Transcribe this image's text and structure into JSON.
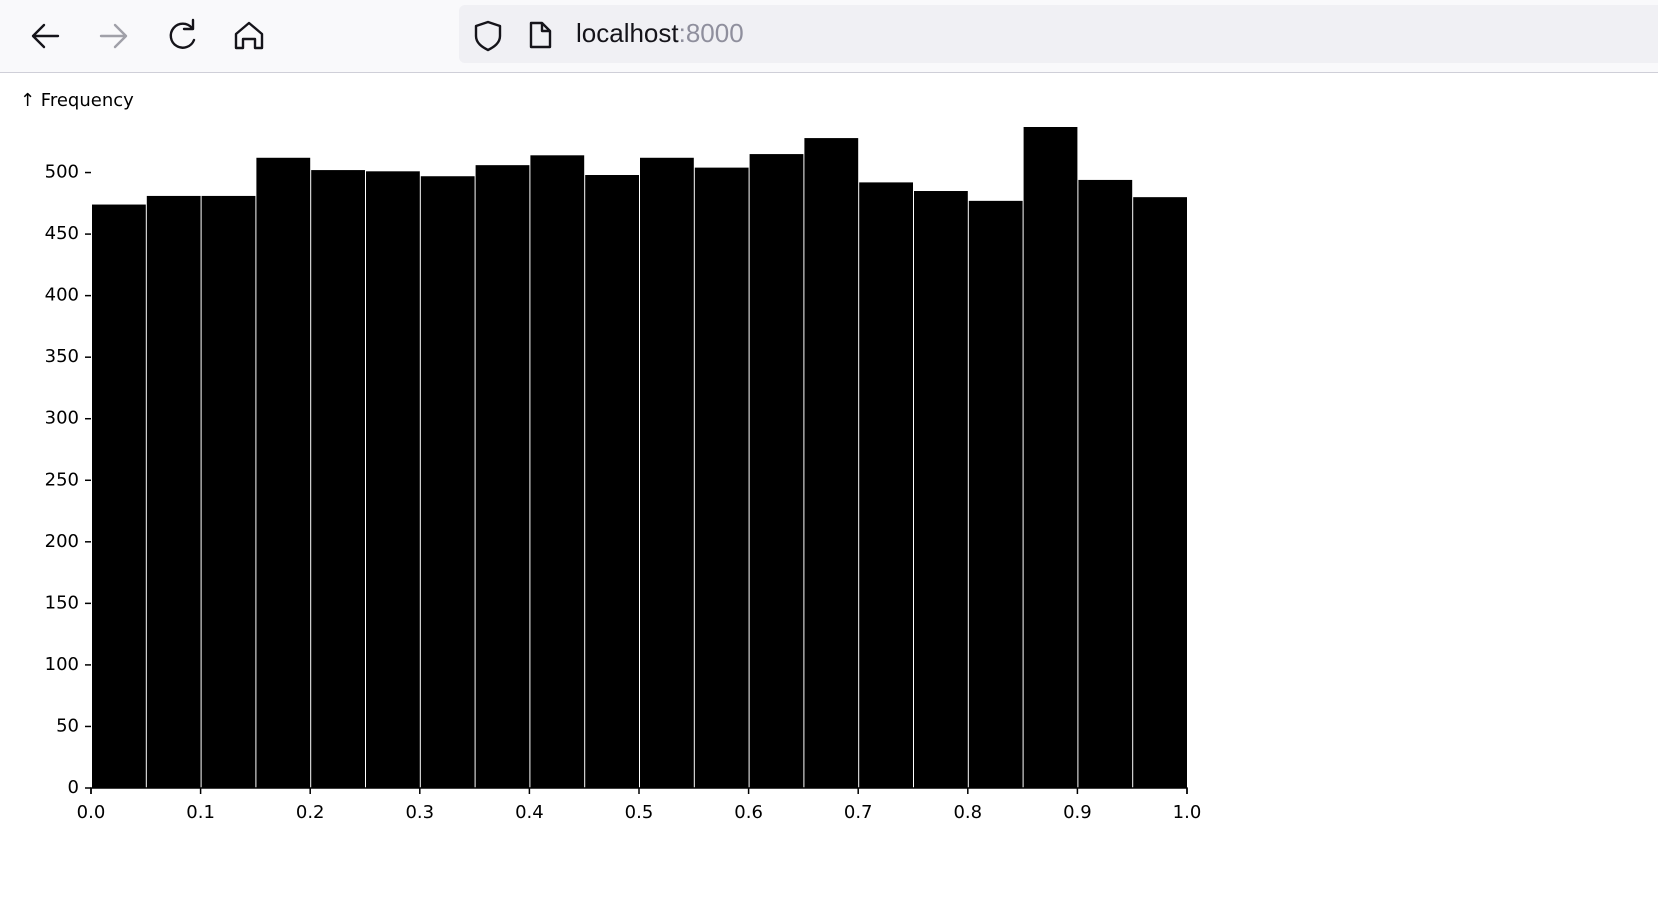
{
  "browser": {
    "url_host": "localhost",
    "url_port": ":8000"
  },
  "chart_data": {
    "type": "histogram",
    "y_label": "↑ Frequency",
    "bins": [
      0,
      0.05,
      0.1,
      0.15,
      0.2,
      0.25,
      0.3,
      0.35,
      0.4,
      0.45,
      0.5,
      0.55,
      0.6,
      0.65,
      0.7,
      0.75,
      0.8,
      0.85,
      0.9,
      0.95,
      1
    ],
    "values": [
      474,
      481,
      481,
      512,
      502,
      501,
      497,
      506,
      514,
      498,
      512,
      504,
      515,
      528,
      492,
      485,
      477,
      537,
      494,
      480
    ],
    "color": "#000000",
    "xlim": [
      0,
      1
    ],
    "xticks": [
      {
        "value": 0,
        "label": "0.0"
      },
      0.1,
      0.2,
      0.3,
      0.4,
      0.5,
      0.6,
      0.7,
      0.8,
      0.9,
      {
        "value": 1,
        "label": "1.0"
      }
    ],
    "ylim": [
      0,
      537
    ],
    "yticks": [
      0,
      50,
      100,
      150,
      200,
      250,
      300,
      350,
      400,
      450,
      500
    ]
  }
}
